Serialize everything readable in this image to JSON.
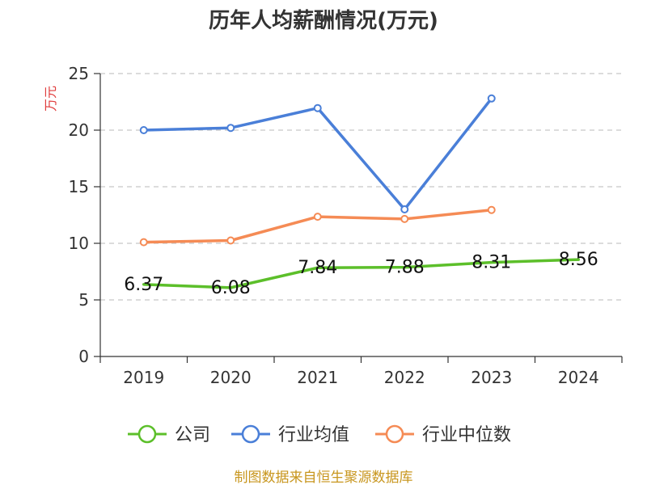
{
  "chart_data": {
    "type": "line",
    "title": "历年人均薪酬情况(万元)",
    "ylabel": "万元",
    "categories": [
      "2019",
      "2020",
      "2021",
      "2022",
      "2023",
      "2024"
    ],
    "ylim": [
      0,
      25
    ],
    "yticks": [
      "0",
      "5",
      "10",
      "15",
      "20",
      "25"
    ],
    "grid": true,
    "legend_position": "bottom",
    "series": [
      {
        "name": "公司",
        "color": "#5cbf2a",
        "values": [
          6.37,
          6.08,
          7.84,
          7.88,
          8.31,
          8.56
        ],
        "labels": [
          "6.37",
          "6.08",
          "7.84",
          "7.88",
          "8.31",
          "8.56"
        ]
      },
      {
        "name": "行业均值",
        "color": "#4a7fd8",
        "values": [
          20.0,
          20.2,
          21.95,
          13.0,
          22.8,
          null
        ]
      },
      {
        "name": "行业中位数",
        "color": "#f58b55",
        "values": [
          10.1,
          10.25,
          12.35,
          12.15,
          12.95,
          null
        ]
      }
    ],
    "ylabel_color": "#e03c3c",
    "source_color": "#c8961e"
  },
  "footer": {
    "source": "制图数据来自恒生聚源数据库"
  }
}
